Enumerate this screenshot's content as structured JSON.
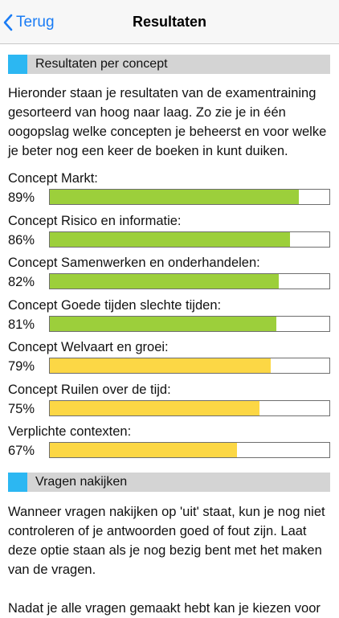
{
  "navbar": {
    "back_label": "Terug",
    "title": "Resultaten"
  },
  "section1": {
    "title": "Resultaten per concept",
    "intro": "Hieronder staan je resultaten van de examentraining gesorteerd van hoog naar laag. Zo zie je in één oogopslag welke concepten je beheerst en voor welke je beter nog een keer de boeken in kunt duiken."
  },
  "colors": {
    "accent": "#2cb7f2",
    "high": "#9ccf3b",
    "medium": "#fcd745",
    "link": "#1a7cf5"
  },
  "concepts": [
    {
      "name": "Concept Markt:",
      "percent_label": "89%",
      "value": 89,
      "level": "high"
    },
    {
      "name": "Concept Risico en informatie:",
      "percent_label": "86%",
      "value": 86,
      "level": "high"
    },
    {
      "name": "Concept Samenwerken en onderhandelen:",
      "percent_label": "82%",
      "value": 82,
      "level": "high"
    },
    {
      "name": "Concept Goede tijden slechte tijden:",
      "percent_label": "81%",
      "value": 81,
      "level": "high"
    },
    {
      "name": "Concept Welvaart en groei:",
      "percent_label": "79%",
      "value": 79,
      "level": "medium"
    },
    {
      "name": "Concept Ruilen over de tijd:",
      "percent_label": "75%",
      "value": 75,
      "level": "medium"
    },
    {
      "name": "Verplichte contexten:",
      "percent_label": "67%",
      "value": 67,
      "level": "medium"
    }
  ],
  "section2": {
    "title": "Vragen nakijken",
    "para1": "Wanneer vragen nakijken op 'uit' staat, kun je nog niet controleren of je antwoorden goed of fout zijn. Laat deze optie staan als je nog bezig bent met het maken van de vragen.",
    "para2": "Nadat je alle vragen gemaakt hebt kan je kiezen voor"
  }
}
